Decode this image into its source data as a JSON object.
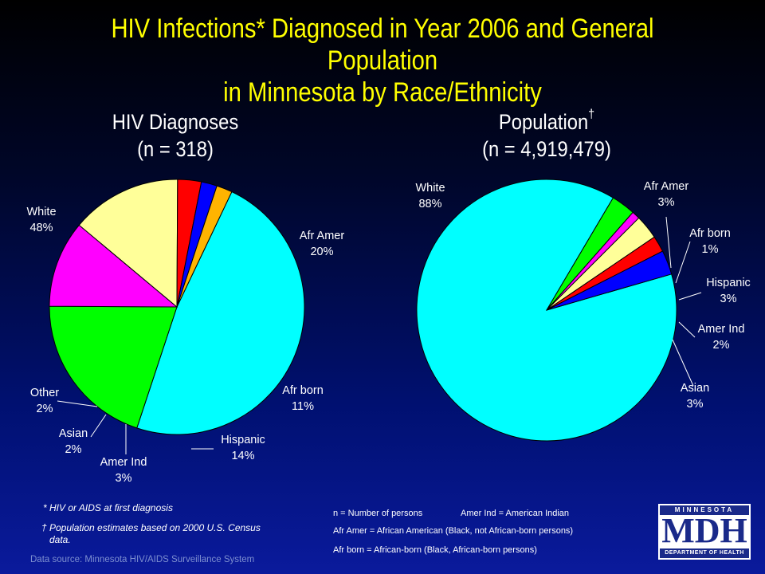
{
  "title": {
    "line1": "HIV Infections* Diagnosed in Year 2006 and General Population",
    "line2": "in Minnesota by Race/Ethnicity"
  },
  "colors": {
    "white": "#00ffff",
    "afr_amer": "#00ff00",
    "afr_born": "#ff00ff",
    "hispanic": "#ffff99",
    "amer_ind": "#ff0000",
    "asian": "#0000ff",
    "other": "#ffb400",
    "title": "#ffff00"
  },
  "chart_data": [
    {
      "type": "pie",
      "title": "HIV Diagnoses",
      "subtitle": "(n = 318)",
      "categories": [
        "White",
        "Afr Amer",
        "Afr born",
        "Hispanic",
        "Amer Ind",
        "Asian",
        "Other"
      ],
      "values": [
        48,
        20,
        11,
        14,
        3,
        2,
        2
      ],
      "value_labels": [
        "48%",
        "20%",
        "11%",
        "14%",
        "3%",
        "2%",
        "2%"
      ],
      "start_angle_deg": 25.5
    },
    {
      "type": "pie",
      "title": "Population",
      "title_mark": "†",
      "subtitle": "(n = 4,919,479)",
      "categories": [
        "White",
        "Afr Amer",
        "Afr born",
        "Hispanic",
        "Amer Ind",
        "Asian"
      ],
      "values": [
        88,
        3,
        1,
        3,
        2,
        3
      ],
      "value_labels": [
        "88%",
        "3%",
        "1%",
        "3%",
        "2%",
        "3%"
      ],
      "start_angle_deg": 74
    }
  ],
  "footnotes": {
    "hiv_aids": "* HIV or AIDS at first diagnosis",
    "population_line1": "† Population estimates based on 2000 U.S. Census",
    "population_line2": "data.",
    "source": "Data source: Minnesota HIV/AIDS Surveillance System"
  },
  "legend_notes": {
    "n_def": "n = Number of persons",
    "amer_ind_def": "Amer Ind = American Indian",
    "afr_amer_def": "Afr Amer = African American (Black, not African-born persons)",
    "afr_born_def": "Afr born = African-born (Black, African-born persons)"
  },
  "logo": {
    "top_band": "MINNESOTA",
    "letters": "MDH",
    "bottom_band": "DEPARTMENT OF HEALTH"
  }
}
